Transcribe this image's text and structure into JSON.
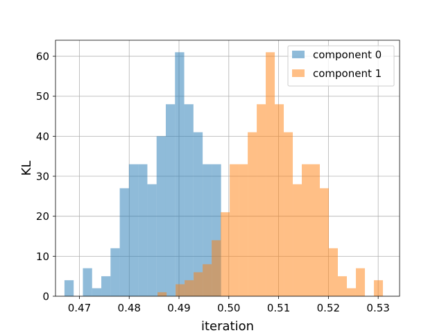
{
  "chart_data": {
    "type": "bar",
    "title": "",
    "xlabel": "iteration",
    "ylabel": "KL",
    "xlim": [
      0.4652,
      0.5343
    ],
    "ylim": [
      0,
      64
    ],
    "x_ticks": [
      0.47,
      0.48,
      0.49,
      0.5,
      0.51,
      0.52,
      0.53
    ],
    "x_tick_labels": [
      "0.47",
      "0.48",
      "0.49",
      "0.50",
      "0.51",
      "0.52",
      "0.53"
    ],
    "y_ticks": [
      0,
      10,
      20,
      30,
      40,
      50,
      60
    ],
    "y_tick_labels": [
      "0",
      "10",
      "20",
      "30",
      "40",
      "50",
      "60"
    ],
    "grid": true,
    "legend_position": "top-right",
    "series": [
      {
        "name": "component 0",
        "color": "#1f77b4",
        "alpha": 0.5,
        "bin_start": 0.467,
        "bin_width": 0.00185,
        "counts": [
          4,
          0,
          7,
          2,
          5,
          12,
          27,
          33,
          33,
          28,
          40,
          48,
          61,
          48,
          41,
          33,
          33
        ]
      },
      {
        "name": "component 1",
        "color": "#ff7f0e",
        "alpha": 0.5,
        "bin_start": 0.4857,
        "bin_width": 0.00181,
        "counts": [
          1,
          0,
          3,
          4,
          6,
          8,
          14,
          21,
          33,
          33,
          41,
          48,
          61,
          48,
          41,
          28,
          33,
          33,
          27,
          12,
          5,
          2,
          7,
          0,
          4
        ]
      }
    ]
  }
}
